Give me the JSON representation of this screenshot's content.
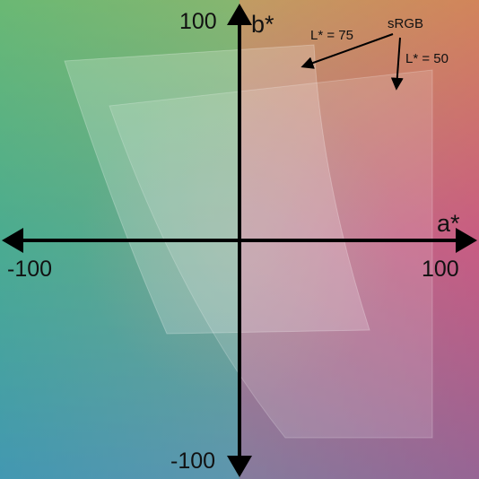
{
  "diagram": {
    "axes": {
      "horizontal": {
        "name": "a*",
        "min_label": "-100",
        "max_label": "100"
      },
      "vertical": {
        "name": "b*",
        "min_label": "-100",
        "max_label": "100"
      }
    },
    "annotations": {
      "gamut_label": "sRGB",
      "slice_75_label": "L* = 75",
      "slice_50_label": "L* = 50"
    },
    "colors": {
      "axis": "#000000",
      "top_left": "#8fd24a",
      "top_right": "#f39a3a",
      "bottom_left": "#2f8bd4",
      "bottom_right": "#7a57b0",
      "center": "#9a9a8a"
    }
  }
}
